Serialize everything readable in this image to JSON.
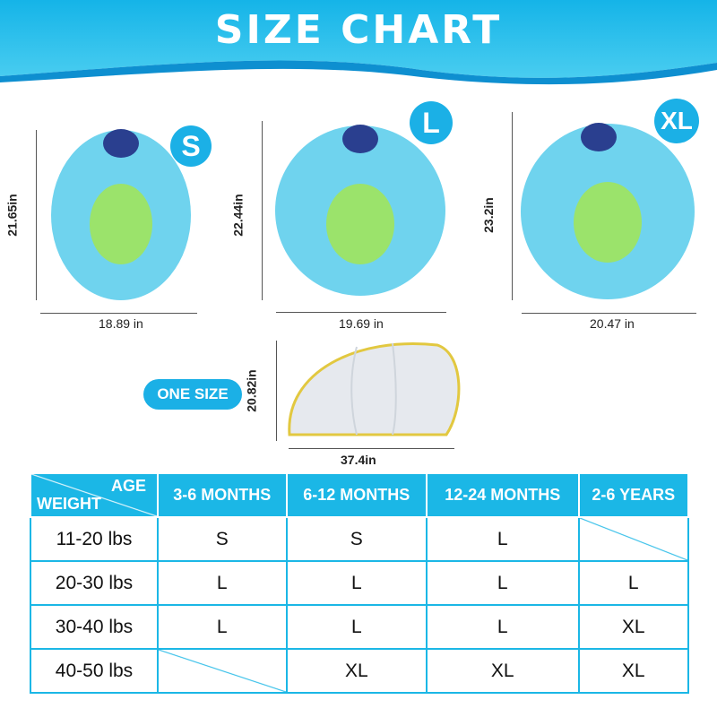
{
  "title": "SIZE CHART",
  "products": [
    {
      "size": "S",
      "height": "21.65in",
      "width": "18.89 in"
    },
    {
      "size": "L",
      "height": "22.44in",
      "width": "19.69 in"
    },
    {
      "size": "XL",
      "height": "23.2in",
      "width": "20.47 in"
    }
  ],
  "canopy": {
    "label": "ONE SIZE",
    "height": "20.82in",
    "width": "37.4in"
  },
  "table": {
    "corner_top": "AGE",
    "corner_bottom": "WEIGHT",
    "columns": [
      "3-6 MONTHS",
      "6-12 MONTHS",
      "12-24 MONTHS",
      "2-6 YEARS"
    ],
    "rows": [
      {
        "weight": "11-20 lbs",
        "cells": [
          "S",
          "S",
          "L",
          ""
        ]
      },
      {
        "weight": "20-30 lbs",
        "cells": [
          "L",
          "L",
          "L",
          "L"
        ]
      },
      {
        "weight": "30-40 lbs",
        "cells": [
          "L",
          "L",
          "L",
          "XL"
        ]
      },
      {
        "weight": "40-50 lbs",
        "cells": [
          "",
          "XL",
          "XL",
          "XL"
        ]
      }
    ]
  },
  "colors": {
    "accent": "#1bb7e6",
    "float": "#6fd3ee"
  }
}
